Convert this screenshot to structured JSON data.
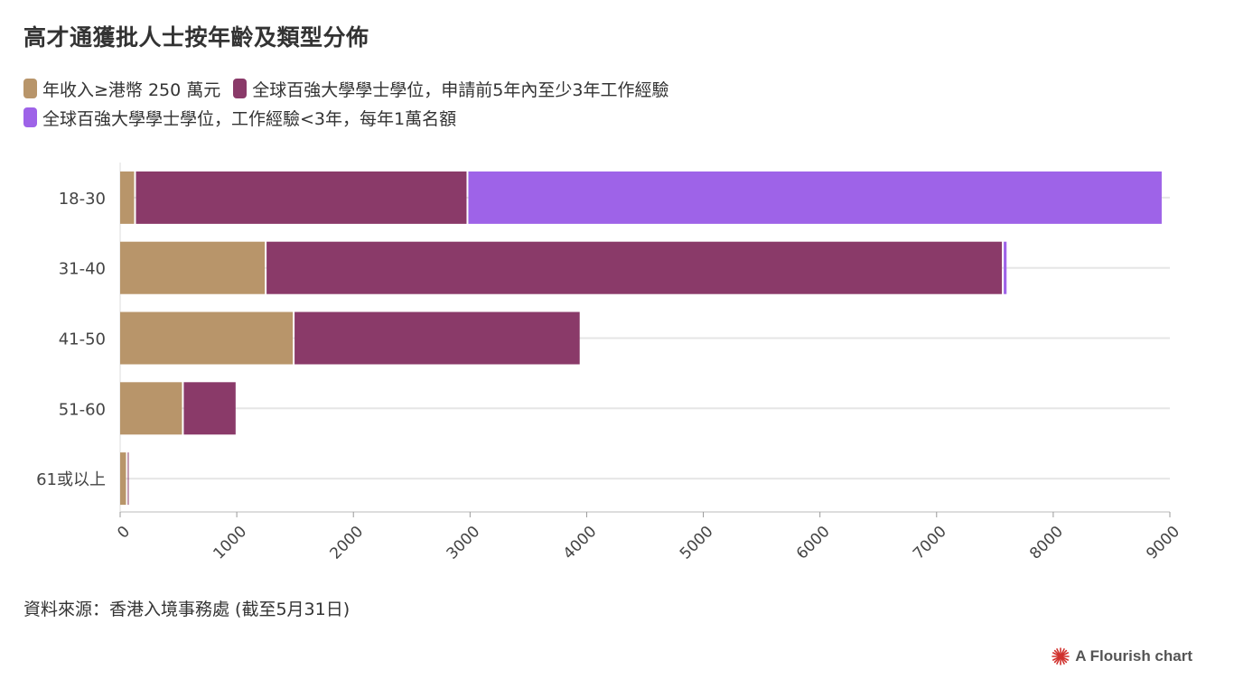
{
  "title": "高才通獲批人士按年齡及類型分佈",
  "source": "資料來源：香港入境事務處 (截至5月31日)",
  "credit": "A Flourish chart",
  "credit_icon": "flourish-logo-icon",
  "chart_data": {
    "type": "bar",
    "orientation": "horizontal",
    "stacked": true,
    "categories": [
      "18-30",
      "31-40",
      "41-50",
      "51-60",
      "61或以上"
    ],
    "series": [
      {
        "name": "年收入≥港幣 250 萬元",
        "color": "#b8956a",
        "values": [
          120,
          1240,
          1480,
          530,
          50
        ]
      },
      {
        "name": "全球百強大學學士學位，申請前5年內至少3年工作經驗",
        "color": "#8a3a69",
        "values": [
          2850,
          6320,
          2460,
          460,
          20
        ]
      },
      {
        "name": "全球百強大學學士學位，工作經驗<3年，每年1萬名額",
        "color": "#9e63e8",
        "values": [
          5960,
          40,
          0,
          0,
          0
        ]
      }
    ],
    "xlim": [
      0,
      9000
    ],
    "xticks": [
      "0",
      "1000",
      "2000",
      "3000",
      "4000",
      "5000",
      "6000",
      "7000",
      "8000",
      "9000"
    ],
    "grid": true,
    "legend_position": "top-left"
  }
}
